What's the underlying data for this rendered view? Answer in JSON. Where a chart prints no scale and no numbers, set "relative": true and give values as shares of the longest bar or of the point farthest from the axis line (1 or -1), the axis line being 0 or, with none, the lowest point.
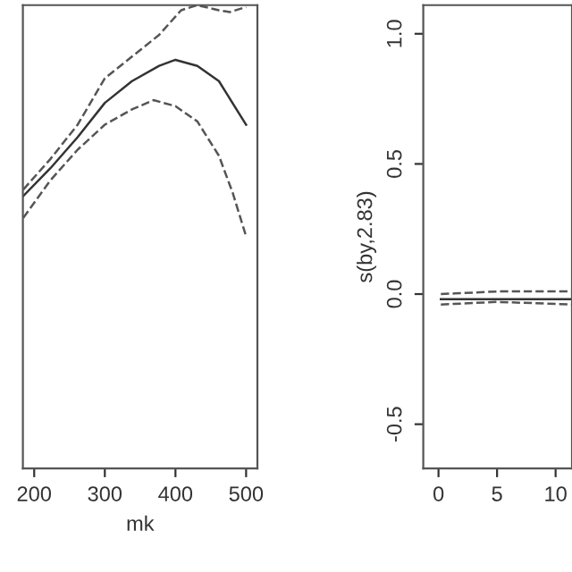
{
  "chart_data": [
    {
      "type": "line",
      "relative": true,
      "xlabel": "mk",
      "xlim": [
        184,
        516
      ],
      "xticks": [
        200,
        300,
        400,
        500
      ],
      "tick_labels": "x",
      "grid": false,
      "legend": false,
      "series": [
        {
          "color": "#333333",
          "line_style": "solid",
          "x": [
            184.6,
            223,
            261.5,
            300,
            338.5,
            377,
            400,
            431,
            461.5,
            500
          ],
          "values": [
            0.588,
            0.648,
            0.715,
            0.789,
            0.836,
            0.869,
            0.882,
            0.869,
            0.836,
            0.742
          ]
        },
        {
          "color": "#555555",
          "line_style": "dashed",
          "x": [
            184.6,
            223,
            261.5,
            300,
            338.5,
            377,
            408,
            431,
            461.5,
            477,
            500
          ],
          "values": [
            0.602,
            0.668,
            0.742,
            0.842,
            0.889,
            0.936,
            0.989,
            1.0,
            0.989,
            0.985,
            0.996
          ]
        },
        {
          "color": "#555555",
          "line_style": "dashed",
          "x": [
            184.6,
            223,
            261.5,
            300,
            338.5,
            369,
            400,
            431,
            461.5,
            481,
            500
          ],
          "values": [
            0.541,
            0.622,
            0.688,
            0.742,
            0.775,
            0.795,
            0.782,
            0.749,
            0.675,
            0.595,
            0.501
          ]
        }
      ]
    },
    {
      "type": "line",
      "ylabel": "s(by,2.83)",
      "xlim": [
        -1.3,
        11.4
      ],
      "xticks": [
        0,
        5,
        10
      ],
      "ylim": [
        -0.67,
        1.11
      ],
      "yticks": [
        -0.5,
        {
          "value": 0,
          "label": "0.0"
        },
        0.5,
        {
          "value": 1,
          "label": "1.0"
        }
      ],
      "grid": false,
      "legend": false,
      "series": [
        {
          "color": "#333333",
          "line_style": "solid",
          "x": [
            0.2,
            5,
            11.4
          ],
          "values": [
            -0.02,
            -0.02,
            -0.02
          ]
        },
        {
          "color": "#555555",
          "line_style": "dashed",
          "x": [
            0.2,
            5,
            11.4
          ],
          "values": [
            0.0,
            0.01,
            0.01
          ]
        },
        {
          "color": "#555555",
          "line_style": "dashed",
          "x": [
            0.2,
            5,
            11.4
          ],
          "values": [
            -0.04,
            -0.03,
            -0.04
          ]
        }
      ]
    }
  ]
}
